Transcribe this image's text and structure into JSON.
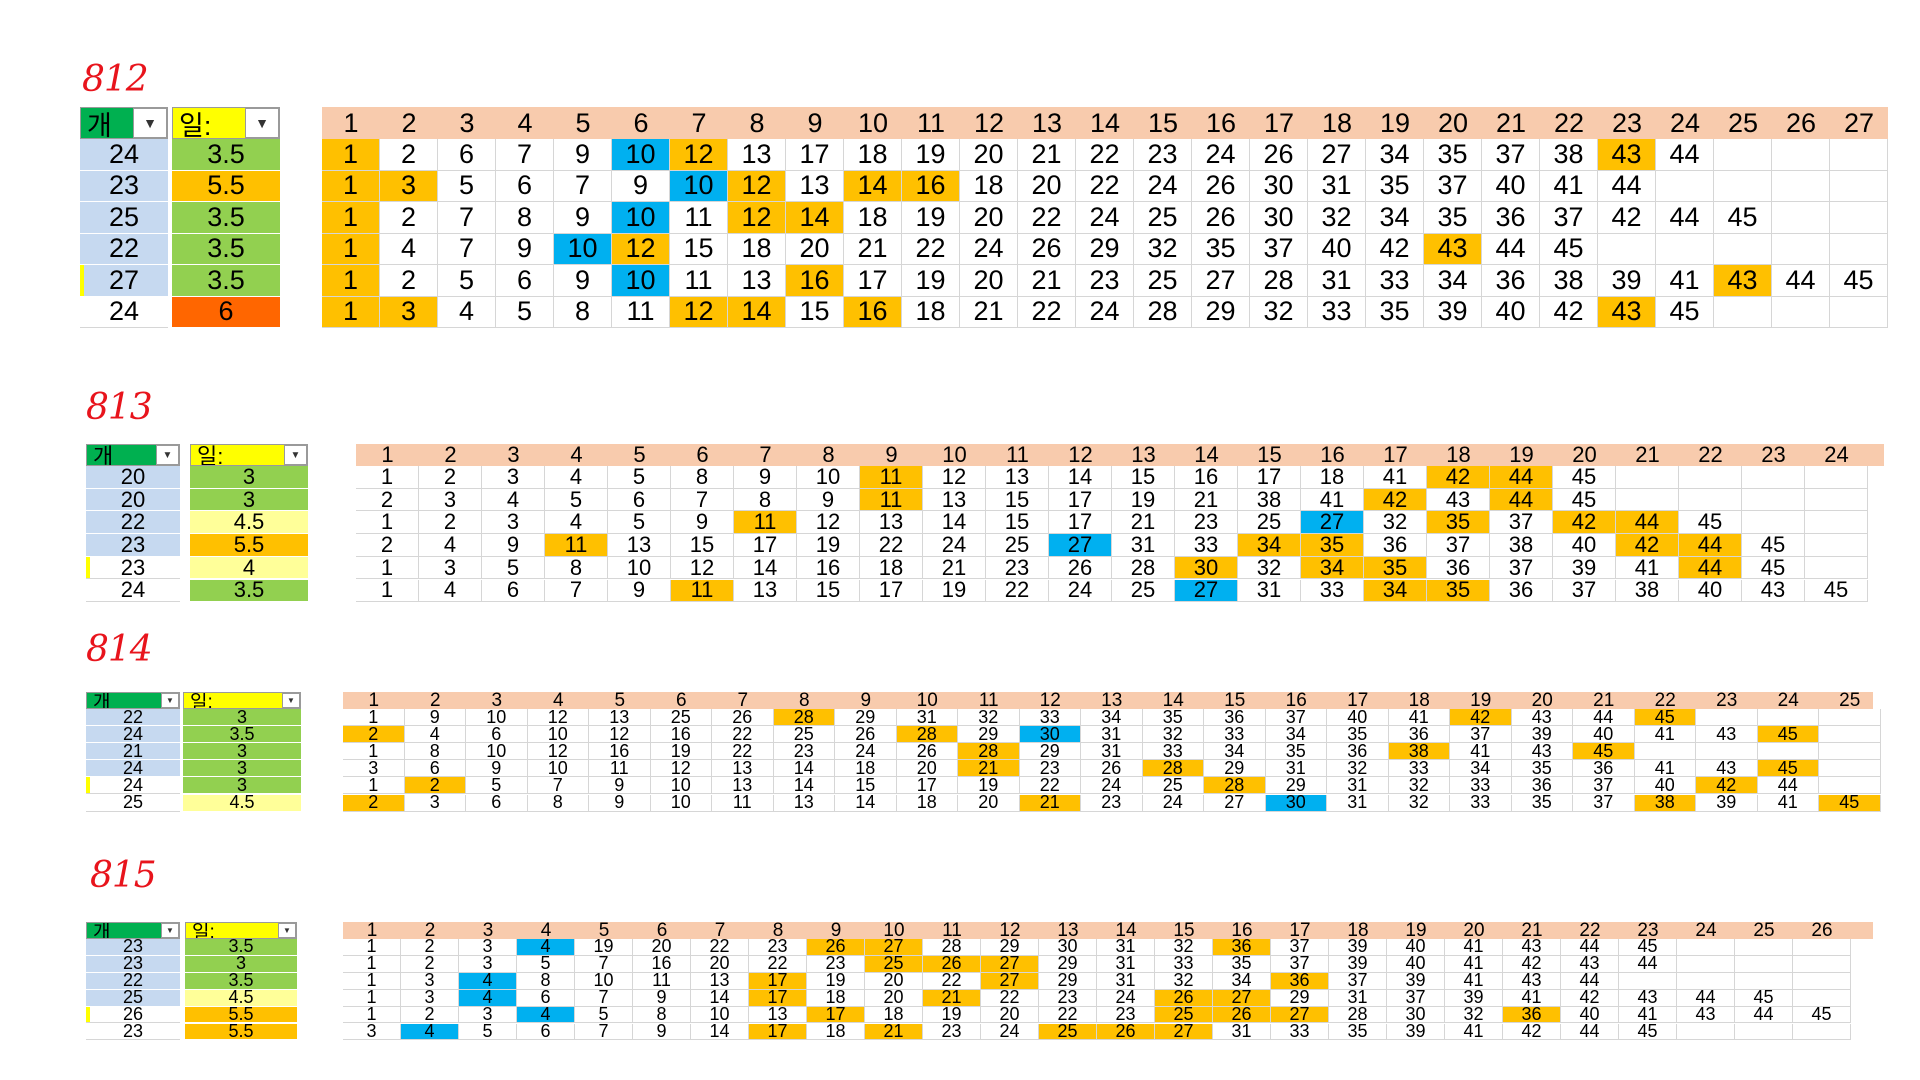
{
  "colors": {
    "orange": "#ffc000",
    "blue": "#00b0f0",
    "header": "#f8cbad",
    "count_bg": "#c6d9f0",
    "green": "#92d050",
    "light_yellow": "#ffff99",
    "red_orange": "#ff6600",
    "label_red": "#e8141c"
  },
  "icons": {
    "filter": "chevron-down-icon"
  },
  "headers": {
    "gae": "개",
    "il": "일:"
  },
  "sections": [
    {
      "label": "812",
      "columns": [
        "1",
        "2",
        "3",
        "4",
        "5",
        "6",
        "7",
        "8",
        "9",
        "10",
        "11",
        "12",
        "13",
        "14",
        "15",
        "16",
        "17",
        "18",
        "19",
        "20",
        "21",
        "22",
        "23",
        "24",
        "25",
        "26",
        "27"
      ],
      "rows": [
        {
          "count": "24",
          "il": "3.5",
          "il_color": "g",
          "mark": false,
          "nums": [
            "1",
            "2",
            "6",
            "7",
            "9",
            "10",
            "12",
            "13",
            "17",
            "18",
            "19",
            "20",
            "21",
            "22",
            "23",
            "24",
            "26",
            "27",
            "34",
            "35",
            "37",
            "38",
            "43",
            "44"
          ],
          "hl": {
            "0": "o",
            "5": "b",
            "6": "o",
            "22": "o"
          }
        },
        {
          "count": "23",
          "il": "5.5",
          "il_color": "o",
          "mark": false,
          "nums": [
            "1",
            "3",
            "5",
            "6",
            "7",
            "9",
            "10",
            "12",
            "13",
            "14",
            "16",
            "18",
            "20",
            "22",
            "24",
            "26",
            "30",
            "31",
            "35",
            "37",
            "40",
            "41",
            "44"
          ],
          "hl": {
            "0": "o",
            "1": "o",
            "6": "b",
            "7": "o",
            "9": "o",
            "10": "o"
          }
        },
        {
          "count": "25",
          "il": "3.5",
          "il_color": "g",
          "mark": false,
          "nums": [
            "1",
            "2",
            "7",
            "8",
            "9",
            "10",
            "11",
            "12",
            "14",
            "18",
            "19",
            "20",
            "22",
            "24",
            "25",
            "26",
            "30",
            "32",
            "34",
            "35",
            "36",
            "37",
            "42",
            "44",
            "45"
          ],
          "hl": {
            "0": "o",
            "5": "b",
            "7": "o",
            "8": "o"
          }
        },
        {
          "count": "22",
          "il": "3.5",
          "il_color": "g",
          "mark": false,
          "nums": [
            "1",
            "4",
            "7",
            "9",
            "10",
            "12",
            "15",
            "18",
            "20",
            "21",
            "22",
            "24",
            "26",
            "29",
            "32",
            "35",
            "37",
            "40",
            "42",
            "43",
            "44",
            "45"
          ],
          "hl": {
            "0": "o",
            "4": "b",
            "5": "o",
            "19": "o"
          }
        },
        {
          "count": "27",
          "il": "3.5",
          "il_color": "g",
          "mark": true,
          "nums": [
            "1",
            "2",
            "5",
            "6",
            "9",
            "10",
            "11",
            "13",
            "16",
            "17",
            "19",
            "20",
            "21",
            "23",
            "25",
            "27",
            "28",
            "31",
            "33",
            "34",
            "36",
            "38",
            "39",
            "41",
            "43",
            "44",
            "45"
          ],
          "hl": {
            "0": "o",
            "5": "b",
            "8": "o",
            "24": "o"
          }
        },
        {
          "count": "24",
          "il": "6",
          "il_color": "r",
          "mark": false,
          "plain": true,
          "nums": [
            "1",
            "3",
            "4",
            "5",
            "8",
            "11",
            "12",
            "14",
            "15",
            "16",
            "18",
            "21",
            "22",
            "24",
            "28",
            "29",
            "32",
            "33",
            "35",
            "39",
            "40",
            "42",
            "43",
            "45"
          ],
          "hl": {
            "0": "o",
            "1": "o",
            "6": "o",
            "7": "o",
            "9": "o",
            "22": "o"
          }
        }
      ]
    },
    {
      "label": "813",
      "columns": [
        "1",
        "2",
        "3",
        "4",
        "5",
        "6",
        "7",
        "8",
        "9",
        "10",
        "11",
        "12",
        "13",
        "14",
        "15",
        "16",
        "17",
        "18",
        "19",
        "20",
        "21",
        "22",
        "23",
        "24"
      ],
      "rows": [
        {
          "count": "20",
          "il": "3",
          "il_color": "g",
          "mark": false,
          "nums": [
            "1",
            "2",
            "3",
            "4",
            "5",
            "8",
            "9",
            "10",
            "11",
            "12",
            "13",
            "14",
            "15",
            "16",
            "17",
            "18",
            "41",
            "42",
            "44",
            "45"
          ],
          "hl": {
            "8": "o",
            "17": "o",
            "18": "o"
          }
        },
        {
          "count": "20",
          "il": "3",
          "il_color": "g",
          "mark": false,
          "nums": [
            "2",
            "3",
            "4",
            "5",
            "6",
            "7",
            "8",
            "9",
            "11",
            "13",
            "15",
            "17",
            "19",
            "21",
            "38",
            "41",
            "42",
            "43",
            "44",
            "45"
          ],
          "hl": {
            "8": "o",
            "16": "o",
            "18": "o"
          }
        },
        {
          "count": "22",
          "il": "4.5",
          "il_color": "y",
          "mark": false,
          "nums": [
            "1",
            "2",
            "3",
            "4",
            "5",
            "9",
            "11",
            "12",
            "13",
            "14",
            "15",
            "17",
            "21",
            "23",
            "25",
            "27",
            "32",
            "35",
            "37",
            "42",
            "44",
            "45"
          ],
          "hl": {
            "6": "o",
            "15": "b",
            "17": "o",
            "19": "o",
            "20": "o"
          }
        },
        {
          "count": "23",
          "il": "5.5",
          "il_color": "o",
          "mark": false,
          "nums": [
            "2",
            "4",
            "9",
            "11",
            "13",
            "15",
            "17",
            "19",
            "22",
            "24",
            "25",
            "27",
            "31",
            "33",
            "34",
            "35",
            "36",
            "37",
            "38",
            "40",
            "42",
            "44",
            "45"
          ],
          "hl": {
            "3": "o",
            "11": "b",
            "14": "o",
            "15": "o",
            "20": "o",
            "21": "o"
          }
        },
        {
          "count": "23",
          "il": "4",
          "il_color": "y",
          "mark": true,
          "plain": true,
          "nums": [
            "1",
            "3",
            "5",
            "8",
            "10",
            "12",
            "14",
            "16",
            "18",
            "21",
            "23",
            "26",
            "28",
            "30",
            "32",
            "34",
            "35",
            "36",
            "37",
            "39",
            "41",
            "44",
            "45"
          ],
          "hl": {
            "13": "o",
            "15": "o",
            "16": "o",
            "21": "o"
          }
        },
        {
          "count": "24",
          "il": "3.5",
          "il_color": "g",
          "mark": false,
          "plain": true,
          "nums": [
            "1",
            "4",
            "6",
            "7",
            "9",
            "11",
            "13",
            "15",
            "17",
            "19",
            "22",
            "24",
            "25",
            "27",
            "31",
            "33",
            "34",
            "35",
            "36",
            "37",
            "38",
            "40",
            "43",
            "45"
          ],
          "hl": {
            "5": "o",
            "13": "b",
            "16": "o",
            "17": "o"
          }
        }
      ]
    },
    {
      "label": "814",
      "columns": [
        "1",
        "2",
        "3",
        "4",
        "5",
        "6",
        "7",
        "8",
        "9",
        "10",
        "11",
        "12",
        "13",
        "14",
        "15",
        "16",
        "17",
        "18",
        "19",
        "20",
        "21",
        "22",
        "23",
        "24",
        "25"
      ],
      "rows": [
        {
          "count": "22",
          "il": "3",
          "il_color": "g",
          "mark": false,
          "nums": [
            "1",
            "9",
            "10",
            "12",
            "13",
            "25",
            "26",
            "28",
            "29",
            "31",
            "32",
            "33",
            "34",
            "35",
            "36",
            "37",
            "40",
            "41",
            "42",
            "43",
            "44",
            "45"
          ],
          "hl": {
            "7": "o",
            "18": "o",
            "21": "o"
          }
        },
        {
          "count": "24",
          "il": "3.5",
          "il_color": "g",
          "mark": false,
          "nums": [
            "2",
            "4",
            "6",
            "10",
            "12",
            "16",
            "22",
            "25",
            "26",
            "28",
            "29",
            "30",
            "31",
            "32",
            "33",
            "34",
            "35",
            "36",
            "37",
            "39",
            "40",
            "41",
            "43",
            "45"
          ],
          "hl": {
            "0": "o",
            "9": "o",
            "11": "b",
            "23": "o"
          }
        },
        {
          "count": "21",
          "il": "3",
          "il_color": "g",
          "mark": false,
          "nums": [
            "1",
            "8",
            "10",
            "12",
            "16",
            "19",
            "22",
            "23",
            "24",
            "26",
            "28",
            "29",
            "31",
            "33",
            "34",
            "35",
            "36",
            "38",
            "41",
            "43",
            "45"
          ],
          "hl": {
            "10": "o",
            "17": "o",
            "20": "o"
          }
        },
        {
          "count": "24",
          "il": "3",
          "il_color": "g",
          "mark": false,
          "nums": [
            "3",
            "6",
            "9",
            "10",
            "11",
            "12",
            "13",
            "14",
            "18",
            "20",
            "21",
            "23",
            "26",
            "28",
            "29",
            "31",
            "32",
            "33",
            "34",
            "35",
            "36",
            "41",
            "43",
            "45"
          ],
          "hl": {
            "10": "o",
            "13": "o",
            "23": "o"
          }
        },
        {
          "count": "24",
          "il": "3",
          "il_color": "g",
          "mark": true,
          "plain": true,
          "nums": [
            "1",
            "2",
            "5",
            "7",
            "9",
            "10",
            "13",
            "14",
            "15",
            "17",
            "19",
            "22",
            "24",
            "25",
            "28",
            "29",
            "31",
            "32",
            "33",
            "36",
            "37",
            "40",
            "42",
            "44"
          ],
          "hl": {
            "1": "o",
            "14": "o",
            "22": "o"
          }
        },
        {
          "count": "25",
          "il": "4.5",
          "il_color": "y",
          "mark": false,
          "plain": true,
          "nums": [
            "2",
            "3",
            "6",
            "8",
            "9",
            "10",
            "11",
            "13",
            "14",
            "18",
            "20",
            "21",
            "23",
            "24",
            "27",
            "30",
            "31",
            "32",
            "33",
            "35",
            "37",
            "38",
            "39",
            "41",
            "45"
          ],
          "hl": {
            "0": "o",
            "11": "o",
            "15": "b",
            "21": "o",
            "24": "o"
          }
        }
      ]
    },
    {
      "label": "815",
      "columns": [
        "1",
        "2",
        "3",
        "4",
        "5",
        "6",
        "7",
        "8",
        "9",
        "10",
        "11",
        "12",
        "13",
        "14",
        "15",
        "16",
        "17",
        "18",
        "19",
        "20",
        "21",
        "22",
        "23",
        "24",
        "25",
        "26"
      ],
      "rows": [
        {
          "count": "23",
          "il": "3.5",
          "il_color": "g",
          "mark": false,
          "nums": [
            "1",
            "2",
            "3",
            "4",
            "19",
            "20",
            "22",
            "23",
            "26",
            "27",
            "28",
            "29",
            "30",
            "31",
            "32",
            "36",
            "37",
            "39",
            "40",
            "41",
            "43",
            "44",
            "45"
          ],
          "hl": {
            "3": "b",
            "8": "o",
            "9": "o",
            "15": "o"
          }
        },
        {
          "count": "23",
          "il": "3",
          "il_color": "g",
          "mark": false,
          "nums": [
            "1",
            "2",
            "3",
            "5",
            "7",
            "16",
            "20",
            "22",
            "23",
            "25",
            "26",
            "27",
            "29",
            "31",
            "33",
            "35",
            "37",
            "39",
            "40",
            "41",
            "42",
            "43",
            "44"
          ],
          "hl": {
            "9": "o",
            "10": "o",
            "11": "o"
          }
        },
        {
          "count": "22",
          "il": "3.5",
          "il_color": "g",
          "mark": false,
          "nums": [
            "1",
            "3",
            "4",
            "8",
            "10",
            "11",
            "13",
            "17",
            "19",
            "20",
            "22",
            "27",
            "29",
            "31",
            "32",
            "34",
            "36",
            "37",
            "39",
            "41",
            "43",
            "44"
          ],
          "hl": {
            "2": "b",
            "7": "o",
            "11": "o",
            "16": "o"
          }
        },
        {
          "count": "25",
          "il": "4.5",
          "il_color": "y",
          "mark": false,
          "nums": [
            "1",
            "3",
            "4",
            "6",
            "7",
            "9",
            "14",
            "17",
            "18",
            "20",
            "21",
            "22",
            "23",
            "24",
            "26",
            "27",
            "29",
            "31",
            "37",
            "39",
            "41",
            "42",
            "43",
            "44",
            "45"
          ],
          "hl": {
            "2": "b",
            "7": "o",
            "10": "o",
            "14": "o",
            "15": "o"
          }
        },
        {
          "count": "26",
          "il": "5.5",
          "il_color": "o",
          "mark": true,
          "plain": true,
          "nums": [
            "1",
            "2",
            "3",
            "4",
            "5",
            "8",
            "10",
            "13",
            "17",
            "18",
            "19",
            "20",
            "22",
            "23",
            "25",
            "26",
            "27",
            "28",
            "30",
            "32",
            "36",
            "40",
            "41",
            "43",
            "44",
            "45"
          ],
          "hl": {
            "3": "b",
            "8": "o",
            "14": "o",
            "15": "o",
            "16": "o",
            "20": "o"
          }
        },
        {
          "count": "23",
          "il": "5.5",
          "il_color": "o",
          "mark": false,
          "plain": true,
          "nums": [
            "3",
            "4",
            "5",
            "6",
            "7",
            "9",
            "14",
            "17",
            "18",
            "21",
            "23",
            "24",
            "25",
            "26",
            "27",
            "31",
            "33",
            "35",
            "39",
            "41",
            "42",
            "44",
            "45"
          ],
          "hl": {
            "1": "b",
            "7": "o",
            "9": "o",
            "12": "o",
            "13": "o",
            "14": "o"
          }
        }
      ]
    }
  ]
}
